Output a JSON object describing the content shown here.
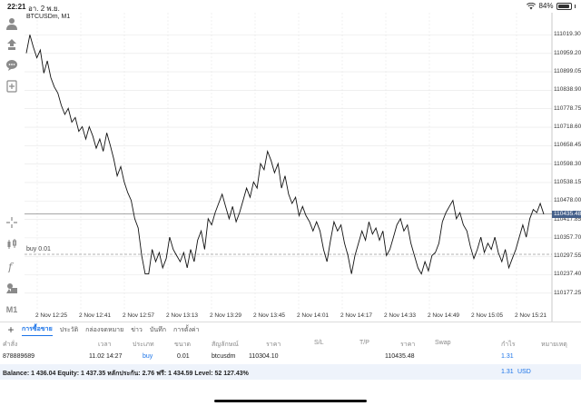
{
  "status_bar": {
    "time": "22:21",
    "date": "อา. 2 พ.ย.",
    "battery": "84%",
    "battery_level": 0.84
  },
  "chart": {
    "symbol_label": "BTCUSDm, M1",
    "order_line_label": "buy 0.01",
    "current_price_tag": "110435.48",
    "colors": {
      "line": "#111111",
      "grid": "#e6e6e6",
      "price_tag": "#45608a",
      "accent": "#1a73e8"
    }
  },
  "chart_data": {
    "type": "line",
    "title": "BTCUSDm, M1",
    "ylim": [
      110150,
      111080
    ],
    "y_ticks": [
      "111019.30",
      "110959.20",
      "110899.05",
      "110838.90",
      "110778.75",
      "110718.60",
      "110658.45",
      "110598.30",
      "110538.15",
      "110478.00",
      "110417.85",
      "110357.70",
      "110297.55",
      "110237.40",
      "110177.25"
    ],
    "x_ticks": [
      "2 Nov 12:25",
      "2 Nov 12:41",
      "2 Nov 12:57",
      "2 Nov 13:13",
      "2 Nov 13:29",
      "2 Nov 13:45",
      "2 Nov 14:01",
      "2 Nov 14:17",
      "2 Nov 14:33",
      "2 Nov 14:49",
      "2 Nov 15:05",
      "2 Nov 15:21"
    ],
    "current_price": 110435.48,
    "order_price": 110304.1,
    "grid": true,
    "series": [
      {
        "values": [
          110960,
          111020,
          110980,
          110945,
          110970,
          110895,
          110935,
          110880,
          110850,
          110830,
          110790,
          110760,
          110780,
          110735,
          110750,
          110705,
          110720,
          110680,
          110720,
          110690,
          110650,
          110680,
          110640,
          110700,
          110660,
          110615,
          110560,
          110590,
          110540,
          110505,
          110480,
          110420,
          110390,
          110300,
          110240,
          110240,
          110320,
          110280,
          110310,
          110260,
          110290,
          110360,
          110320,
          110300,
          110280,
          110310,
          110260,
          110320,
          110280,
          110350,
          110380,
          110320,
          110420,
          110400,
          110440,
          110470,
          110500,
          110460,
          110420,
          110460,
          110410,
          110440,
          110480,
          110520,
          110490,
          110540,
          110520,
          110600,
          110580,
          110640,
          110610,
          110570,
          110600,
          110520,
          110560,
          110500,
          110470,
          110490,
          110430,
          110460,
          110430,
          110410,
          110380,
          110410,
          110380,
          110320,
          110280,
          110350,
          110410,
          110380,
          110400,
          110340,
          110300,
          110240,
          110300,
          110340,
          110380,
          110350,
          110410,
          110370,
          110390,
          110350,
          110380,
          110300,
          110320,
          110360,
          110400,
          110420,
          110380,
          110400,
          110340,
          110300,
          110260,
          110240,
          110280,
          110250,
          110300,
          110310,
          110340,
          110410,
          110440,
          110460,
          110480,
          110420,
          110440,
          110400,
          110380,
          110330,
          110290,
          110320,
          110360,
          110310,
          110340,
          110320,
          110360,
          110310,
          110280,
          110320,
          110260,
          110290,
          110320,
          110360,
          110400,
          110360,
          110420,
          110450,
          110440,
          110470,
          110435
        ]
      }
    ]
  },
  "toolbar": {
    "icons": [
      "account-icon",
      "trade-icon",
      "chat-icon",
      "new-chart-icon",
      "crosshair-icon",
      "candlestick-icon",
      "indicator-icon",
      "objects-icon"
    ],
    "timeframe": "M1"
  },
  "tabs": {
    "add_label": "+",
    "items": [
      "การซื้อขาย",
      "ประวัติ",
      "กล่องจดหมาย",
      "ข่าว",
      "บันทึก",
      "การตั้งค่า"
    ],
    "active_index": 0
  },
  "positions": {
    "headers": [
      "คำสั่ง",
      "เวลา",
      "ประเภท",
      "ขนาด",
      "สัญลักษณ์",
      "ราคา",
      "S/L",
      "T/P",
      "ราคา",
      "Swap",
      "กำไร",
      "หมายเหตุ"
    ],
    "row": {
      "order": "878889689",
      "time": "11.02 14:27",
      "type": "buy",
      "volume": "0.01",
      "symbol": "btcusdm",
      "open_price": "110304.10",
      "sl": "",
      "tp": "",
      "current_price": "110435.48",
      "swap": "",
      "profit": "1.31",
      "comment": ""
    }
  },
  "balance": {
    "text": "Balance: 1 436.04 Equity: 1 437.35 หลักประกัน: 2.76 ฟรี: 1 434.59 Level: 52 127.43%",
    "profit": "1.31",
    "currency": "USD"
  }
}
